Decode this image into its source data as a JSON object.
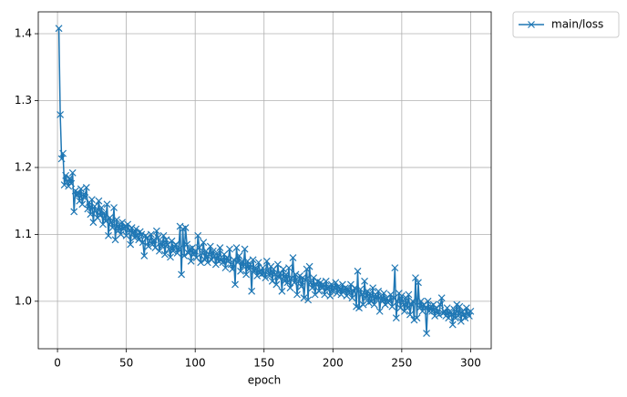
{
  "chart_data": {
    "type": "line",
    "xlabel": "epoch",
    "x": [
      1,
      2,
      3,
      4,
      5,
      6,
      7,
      8,
      9,
      10,
      11,
      12,
      13,
      14,
      15,
      16,
      17,
      18,
      19,
      20,
      21,
      22,
      23,
      24,
      25,
      26,
      27,
      28,
      29,
      30,
      31,
      32,
      33,
      34,
      35,
      36,
      37,
      38,
      39,
      40,
      41,
      42,
      43,
      44,
      45,
      46,
      47,
      48,
      49,
      50,
      51,
      52,
      53,
      54,
      55,
      56,
      57,
      58,
      59,
      60,
      61,
      62,
      63,
      64,
      65,
      66,
      67,
      68,
      69,
      70,
      71,
      72,
      73,
      74,
      75,
      76,
      77,
      78,
      79,
      80,
      81,
      82,
      83,
      84,
      85,
      86,
      87,
      88,
      89,
      90,
      91,
      92,
      93,
      94,
      95,
      96,
      97,
      98,
      99,
      100,
      101,
      102,
      103,
      104,
      105,
      106,
      107,
      108,
      109,
      110,
      111,
      112,
      113,
      114,
      115,
      116,
      117,
      118,
      119,
      120,
      121,
      122,
      123,
      124,
      125,
      126,
      127,
      128,
      129,
      130,
      131,
      132,
      133,
      134,
      135,
      136,
      137,
      138,
      139,
      140,
      141,
      142,
      143,
      144,
      145,
      146,
      147,
      148,
      149,
      150,
      151,
      152,
      153,
      154,
      155,
      156,
      157,
      158,
      159,
      160,
      161,
      162,
      163,
      164,
      165,
      166,
      167,
      168,
      169,
      170,
      171,
      172,
      173,
      174,
      175,
      176,
      177,
      178,
      179,
      180,
      181,
      182,
      183,
      184,
      185,
      186,
      187,
      188,
      189,
      190,
      191,
      192,
      193,
      194,
      195,
      196,
      197,
      198,
      199,
      200,
      201,
      202,
      203,
      204,
      205,
      206,
      207,
      208,
      209,
      210,
      211,
      212,
      213,
      214,
      215,
      216,
      217,
      218,
      219,
      220,
      221,
      222,
      223,
      224,
      225,
      226,
      227,
      228,
      229,
      230,
      231,
      232,
      233,
      234,
      235,
      236,
      237,
      238,
      239,
      240,
      241,
      242,
      243,
      244,
      245,
      246,
      247,
      248,
      249,
      250,
      251,
      252,
      253,
      254,
      255,
      256,
      257,
      258,
      259,
      260,
      261,
      262,
      263,
      264,
      265,
      266,
      267,
      268,
      269,
      270,
      271,
      272,
      273,
      274,
      275,
      276,
      277,
      278,
      279,
      280,
      281,
      282,
      283,
      284,
      285,
      286,
      287,
      288,
      289,
      290,
      291,
      292,
      293,
      294,
      295,
      296,
      297,
      298,
      299,
      300
    ],
    "series": [
      {
        "name": "main/loss",
        "color": "#1f77b4",
        "marker": "x",
        "values": [
          1.408,
          1.279,
          1.213,
          1.221,
          1.174,
          1.188,
          1.178,
          1.172,
          1.184,
          1.176,
          1.192,
          1.134,
          1.165,
          1.158,
          1.162,
          1.15,
          1.168,
          1.145,
          1.16,
          1.155,
          1.17,
          1.138,
          1.148,
          1.13,
          1.152,
          1.118,
          1.142,
          1.135,
          1.125,
          1.15,
          1.128,
          1.14,
          1.115,
          1.132,
          1.12,
          1.145,
          1.098,
          1.125,
          1.118,
          1.11,
          1.14,
          1.092,
          1.122,
          1.105,
          1.115,
          1.1,
          1.118,
          1.108,
          1.112,
          1.098,
          1.115,
          1.106,
          1.085,
          1.11,
          1.102,
          1.095,
          1.108,
          1.098,
          1.092,
          1.104,
          1.1,
          1.088,
          1.068,
          1.098,
          1.095,
          1.082,
          1.09,
          1.1,
          1.085,
          1.092,
          1.08,
          1.105,
          1.095,
          1.075,
          1.088,
          1.082,
          1.098,
          1.07,
          1.092,
          1.085,
          1.078,
          1.066,
          1.09,
          1.075,
          1.082,
          1.085,
          1.072,
          1.078,
          1.112,
          1.04,
          1.108,
          1.068,
          1.11,
          1.085,
          1.072,
          1.078,
          1.06,
          1.08,
          1.07,
          1.075,
          1.065,
          1.098,
          1.08,
          1.058,
          1.072,
          1.088,
          1.062,
          1.075,
          1.058,
          1.07,
          1.082,
          1.062,
          1.075,
          1.068,
          1.055,
          1.072,
          1.06,
          1.08,
          1.062,
          1.058,
          1.07,
          1.05,
          1.065,
          1.06,
          1.078,
          1.055,
          1.048,
          1.062,
          1.025,
          1.08,
          1.058,
          1.068,
          1.045,
          1.06,
          1.052,
          1.078,
          1.04,
          1.06,
          1.048,
          1.055,
          1.015,
          1.062,
          1.045,
          1.05,
          1.038,
          1.058,
          1.044,
          1.04,
          1.05,
          1.042,
          1.035,
          1.06,
          1.045,
          1.038,
          1.052,
          1.03,
          1.048,
          1.04,
          1.025,
          1.055,
          1.035,
          1.042,
          1.015,
          1.048,
          1.03,
          1.04,
          1.028,
          1.05,
          1.02,
          1.035,
          1.065,
          1.028,
          1.04,
          1.01,
          1.03,
          1.038,
          1.022,
          1.035,
          1.005,
          1.032,
          1.048,
          1.002,
          1.052,
          1.028,
          1.02,
          1.035,
          1.01,
          1.025,
          1.03,
          1.015,
          1.028,
          1.02,
          1.025,
          1.01,
          1.03,
          1.018,
          1.022,
          1.008,
          1.025,
          1.015,
          1.02,
          1.028,
          1.012,
          1.022,
          1.018,
          1.01,
          1.025,
          1.015,
          1.02,
          1.008,
          1.018,
          1.012,
          1.025,
          1.005,
          1.015,
          1.02,
          0.992,
          1.045,
          0.99,
          1.018,
          1.01,
          0.995,
          1.03,
          1.005,
          1.015,
          0.998,
          1.012,
          1.0,
          1.02,
          0.995,
          1.01,
          1.002,
          1.015,
          0.985,
          1.008,
          1.0,
          1.012,
          0.995,
          1.005,
          0.998,
          1.0,
          1.01,
          0.992,
          1.005,
          1.05,
          0.975,
          1.0,
          1.012,
          0.99,
          1.008,
          0.998,
          0.985,
          1.005,
          0.99,
          1.01,
          0.98,
          0.995,
          1.0,
          0.972,
          1.035,
          0.975,
          1.028,
          0.99,
          1.0,
          0.985,
          0.995,
          0.99,
          0.952,
          1.0,
          0.985,
          0.992,
          0.985,
          0.995,
          0.978,
          0.99,
          0.985,
          0.98,
          0.995,
          1.005,
          0.982,
          0.985,
          0.978,
          0.99,
          0.975,
          0.985,
          0.98,
          0.965,
          0.988,
          0.975,
          0.995,
          0.978,
          0.992,
          0.97,
          0.985,
          0.98,
          0.975,
          0.99,
          0.982,
          0.978,
          0.985
        ]
      }
    ],
    "xlim": [
      -13.95,
      314.95
    ],
    "ylim": [
      0.929,
      1.4327
    ],
    "xticks": [
      0,
      50,
      100,
      150,
      200,
      250,
      300
    ],
    "yticks": [
      {
        "value": 1,
        "label": "1.0"
      },
      1.1,
      1.2,
      1.3,
      1.4
    ],
    "grid": true,
    "legend": "outside upper right"
  }
}
